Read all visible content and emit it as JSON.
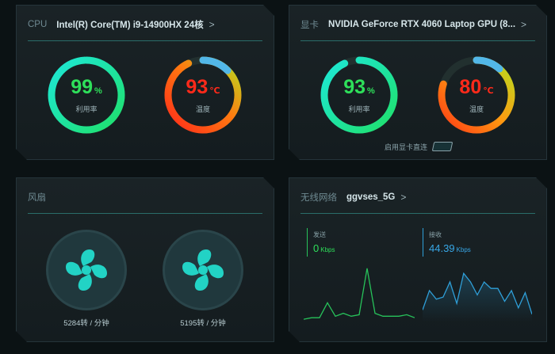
{
  "cpu": {
    "label": "CPU",
    "name": "Intel(R) Core(TM) i9-14900HX 24核",
    "chevron": ">",
    "usage": {
      "value": "99",
      "unit": "%",
      "label": "利用率",
      "fraction": 0.99
    },
    "temp": {
      "value": "93",
      "unit": "℃",
      "label": "温度",
      "fraction": 0.93
    }
  },
  "gpu": {
    "label": "显卡",
    "name": "NVIDIA GeForce RTX 4060 Laptop GPU (8...",
    "chevron": ">",
    "usage": {
      "value": "93",
      "unit": "%",
      "label": "利用率",
      "fraction": 0.93
    },
    "temp": {
      "value": "80",
      "unit": "℃",
      "label": "温度",
      "fraction": 0.8
    },
    "direct_label": "启用显卡直连"
  },
  "fan": {
    "label": "风扇",
    "fans": [
      {
        "rpm_text": "5284转 / 分钟"
      },
      {
        "rpm_text": "5195转 / 分钟"
      }
    ]
  },
  "network": {
    "label": "无线网络",
    "ssid": "ggvses_5G",
    "chevron": ">",
    "send": {
      "label": "发送",
      "value": "0",
      "unit": "Kbps",
      "history": [
        1,
        2,
        2,
        12,
        3,
        5,
        3,
        4,
        35,
        5,
        3,
        3,
        3,
        4,
        2
      ]
    },
    "recv": {
      "label": "接收",
      "value": "44.39",
      "unit": "Kbps",
      "history": [
        5,
        14,
        10,
        11,
        18,
        8,
        22,
        18,
        12,
        18,
        15,
        15,
        9,
        14,
        6,
        13,
        3
      ]
    }
  },
  "colors": {
    "bg": "#0b1214",
    "green": "#2ee05a",
    "red": "#ff2a1a",
    "cyan": "#22d3c5",
    "send_line": "#27c25a",
    "recv_line": "#2f9fd8",
    "recv_text": "#38a8e8"
  }
}
